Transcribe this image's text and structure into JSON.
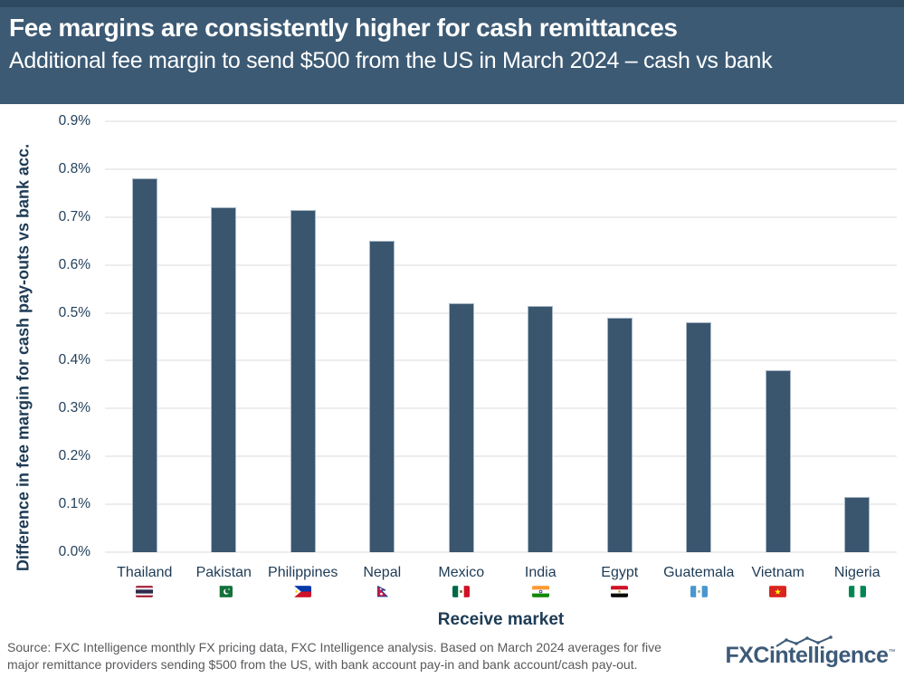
{
  "header": {
    "title": "Fee margins are consistently higher for cash remittances",
    "subtitle": "Additional fee margin to send $500 from the US in March 2024 – cash vs bank"
  },
  "chart_data": {
    "type": "bar",
    "title": "Fee margins are consistently higher for cash remittances",
    "subtitle": "Additional fee margin to send $500 from the US in March 2024 – cash vs bank",
    "categories": [
      "Thailand",
      "Pakistan",
      "Philippines",
      "Nepal",
      "Mexico",
      "India",
      "Egypt",
      "Guatemala",
      "Vietnam",
      "Nigeria"
    ],
    "values": [
      0.78,
      0.72,
      0.715,
      0.65,
      0.52,
      0.515,
      0.49,
      0.48,
      0.38,
      0.115
    ],
    "unit": "%",
    "flag_icons": [
      "flag-thailand",
      "flag-pakistan",
      "flag-philippines",
      "flag-nepal",
      "flag-mexico",
      "flag-india",
      "flag-egypt",
      "flag-guatemala",
      "flag-vietnam",
      "flag-nigeria"
    ],
    "xlabel": "Receive market",
    "ylabel": "Difference in fee margin for cash pay-outs vs bank acc.",
    "ylim": [
      0,
      0.9
    ],
    "ytick_labels": [
      "0.0%",
      "0.1%",
      "0.2%",
      "0.3%",
      "0.4%",
      "0.5%",
      "0.6%",
      "0.7%",
      "0.8%",
      "0.9%"
    ],
    "grid": true,
    "legend": false,
    "bar_color": "#3a566f"
  },
  "footer": {
    "source_lines": [
      "Source: FXC Intelligence monthly FX pricing data, FXC Intelligence analysis. Based on March 2024 averages for five",
      "major remittance providers sending $500 from the US, with bank account pay-in and bank account/cash pay-out."
    ],
    "logo": {
      "bold": "FXC",
      "rest": "intelligence",
      "tm": "™"
    }
  },
  "colors": {
    "header_bg": "#3c5a74",
    "header_top_strip": "#2d4a61",
    "bar": "#3a566f",
    "axis_text": "#1e3b55",
    "grid_line": "#ededed",
    "source_text": "#58595c",
    "logo": "#3d5a78"
  }
}
